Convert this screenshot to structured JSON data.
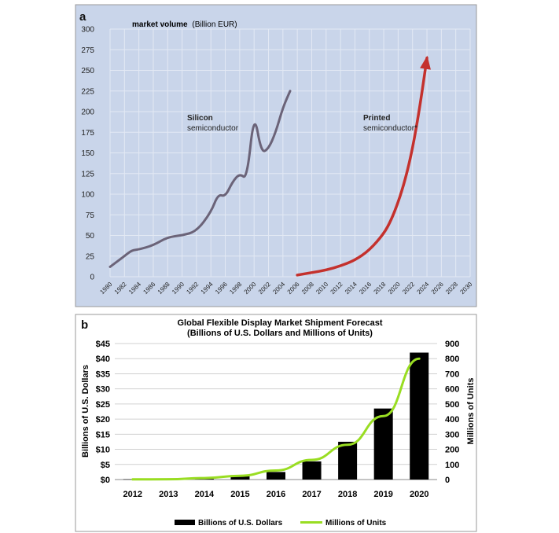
{
  "chart_data": [
    {
      "panel_label": "a",
      "type": "line",
      "title": "market volume",
      "title_unit": "(Billion EUR)",
      "xlabel": "",
      "ylabel": "",
      "ylim": [
        0,
        300
      ],
      "yticks": [
        "0",
        "25",
        "50",
        "75",
        "100",
        "125",
        "150",
        "175",
        "200",
        "225",
        "250",
        "275",
        "300"
      ],
      "xlim": [
        1980,
        2030
      ],
      "xticks": [
        "1980",
        "1982",
        "1984",
        "1986",
        "1988",
        "1990",
        "1992",
        "1994",
        "1996",
        "1998",
        "2000",
        "2002",
        "2004",
        "2006",
        "2008",
        "2010",
        "2012",
        "2014",
        "2016",
        "2018",
        "2020",
        "2022",
        "2024",
        "2026",
        "2028",
        "2030"
      ],
      "grid": true,
      "background_color": "#c9d5ea",
      "series": [
        {
          "name_bold": "Silicon",
          "name_rest": "semiconductor",
          "color": "#6b6378",
          "x": [
            1980,
            1982,
            1983,
            1984,
            1986,
            1988,
            1990,
            1992,
            1994,
            1995,
            1996,
            1997,
            1998,
            1999,
            2000,
            2001,
            2002,
            2003,
            2004,
            2005
          ],
          "y": [
            12,
            25,
            32,
            33,
            38,
            48,
            50,
            55,
            78,
            100,
            97,
            115,
            125,
            118,
            200,
            150,
            155,
            175,
            205,
            225
          ]
        },
        {
          "name_bold": "Printed",
          "name_rest": "semiconductor*",
          "color": "#c4312d",
          "x": [
            2006,
            2008,
            2010,
            2012,
            2014,
            2016,
            2018,
            2019,
            2020,
            2021,
            2022,
            2023,
            2024
          ],
          "y": [
            2,
            5,
            8,
            13,
            20,
            32,
            52,
            68,
            90,
            118,
            155,
            205,
            265
          ]
        }
      ]
    },
    {
      "panel_label": "b",
      "type": "bar",
      "title": "Global Flexible Display Market Shipment Forecast",
      "subtitle": "(Billions of U.S. Dollars and Millions of Units)",
      "categories": [
        "2012",
        "2013",
        "2014",
        "2015",
        "2016",
        "2017",
        "2018",
        "2019",
        "2020"
      ],
      "ylabel": "Billions of U.S. Dollars",
      "y2label": "Millions of Units",
      "ylim": [
        0,
        45
      ],
      "yticks": [
        "$0",
        "$5",
        "$10",
        "$15",
        "$20",
        "$25",
        "$30",
        "$35",
        "$40",
        "$45"
      ],
      "y2lim": [
        0,
        900
      ],
      "y2ticks": [
        "0",
        "100",
        "200",
        "300",
        "400",
        "500",
        "600",
        "700",
        "800",
        "900"
      ],
      "legend_position": "bottom",
      "series": [
        {
          "name": "Billions of U.S. Dollars",
          "type": "bar",
          "axis": "left",
          "color": "#000000",
          "values": [
            0.1,
            0.2,
            0.5,
            1.2,
            2.5,
            6,
            12.5,
            23.5,
            42
          ]
        },
        {
          "name": "Millions of Units",
          "type": "line",
          "axis": "right",
          "color": "#99dd22",
          "values": [
            1,
            2,
            10,
            25,
            60,
            130,
            230,
            420,
            800
          ]
        }
      ]
    }
  ]
}
